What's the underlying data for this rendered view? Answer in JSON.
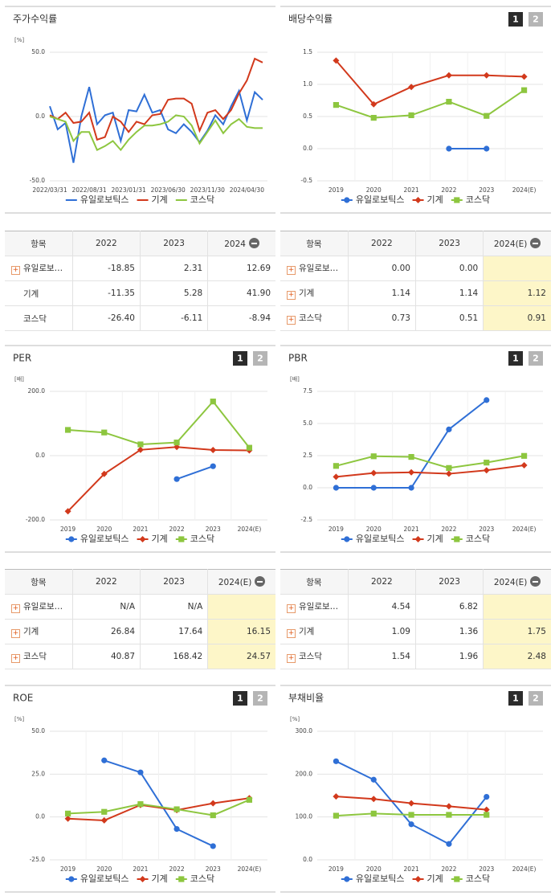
{
  "chart_data": [
    {
      "type": "line",
      "title": "주가수익률",
      "unit": "[%]",
      "categories": [
        "2022/03/31",
        null,
        null,
        null,
        null,
        "2022/08/31",
        null,
        null,
        null,
        null,
        "2023/01/31",
        null,
        null,
        null,
        null,
        "2023/06/30",
        null,
        null,
        null,
        null,
        "2023/11/30",
        null,
        null,
        null,
        null,
        "2024/04/30",
        null,
        null
      ],
      "series": [
        {
          "name": "유일로보틱스",
          "color": "#2f6fd6",
          "values": [
            8,
            -10,
            -5,
            -36,
            0,
            23,
            -6,
            1,
            3,
            -19,
            5,
            4,
            17,
            3,
            5,
            -10,
            -13,
            -6,
            -12,
            -20,
            -11,
            1,
            -6,
            8,
            20,
            -3,
            19,
            13
          ]
        },
        {
          "name": "기계",
          "color": "#d2391c",
          "values": [
            1,
            -2,
            3,
            -5,
            -4,
            3,
            -18,
            -16,
            0,
            -4,
            -12,
            -4,
            -6,
            1,
            2,
            13,
            14,
            14,
            10,
            -11,
            3,
            5,
            -2,
            5,
            18,
            28,
            45,
            42
          ]
        },
        {
          "name": "코스닥",
          "color": "#8dc63f",
          "values": [
            0,
            -2,
            -4,
            -19,
            -12,
            -12,
            -26,
            -23,
            -19,
            -26,
            -18,
            -12,
            -7,
            -7,
            -6,
            -4,
            1,
            0,
            -7,
            -21,
            -12,
            -3,
            -13,
            -6,
            -2,
            -8,
            -9,
            -9
          ]
        }
      ],
      "ylim": [
        -50,
        50
      ],
      "yticks": [
        {
          "value": -50,
          "label": "-50.0"
        },
        {
          "value": 0,
          "label": "0.0"
        },
        {
          "value": 50,
          "label": "50.0"
        }
      ],
      "grid": true
    },
    {
      "type": "line",
      "title": "배당수익률",
      "page_buttons": [
        "1",
        "2"
      ],
      "categories": [
        "2019",
        "2020",
        "2021",
        "2022",
        "2023",
        "2024(E)"
      ],
      "series": [
        {
          "name": "유일로보틱스",
          "color": "#2f6fd6",
          "marker": "circle",
          "values": [
            null,
            null,
            null,
            0,
            0,
            null
          ]
        },
        {
          "name": "기계",
          "color": "#d2391c",
          "marker": "diamond",
          "values": [
            1.37,
            0.69,
            0.96,
            1.14,
            1.14,
            1.12
          ]
        },
        {
          "name": "코스닥",
          "color": "#8dc63f",
          "marker": "square",
          "values": [
            0.68,
            0.48,
            0.52,
            0.73,
            0.51,
            0.91
          ]
        }
      ],
      "ylim": [
        -0.5,
        1.5
      ],
      "yticks": [
        -0.5,
        {
          "value": 0,
          "label": "0.0"
        },
        0.5,
        {
          "value": 1,
          "label": "1.0"
        },
        1.5
      ],
      "grid": true
    },
    {
      "type": "line",
      "title": "PER",
      "page_buttons": [
        "1",
        "2"
      ],
      "unit": "[배]",
      "categories": [
        "2019",
        "2020",
        "2021",
        "2022",
        "2023",
        "2024(E)"
      ],
      "series": [
        {
          "name": "유일로보틱스",
          "color": "#2f6fd6",
          "marker": "circle",
          "values": [
            null,
            null,
            null,
            -73,
            -33,
            null
          ]
        },
        {
          "name": "기계",
          "color": "#d2391c",
          "marker": "diamond",
          "values": [
            -173,
            -57,
            18,
            26.84,
            17.64,
            16.15
          ]
        },
        {
          "name": "코스닥",
          "color": "#8dc63f",
          "marker": "square",
          "values": [
            80,
            72,
            35,
            40.87,
            168.42,
            24.57
          ]
        }
      ],
      "ylim": [
        -200,
        200
      ],
      "yticks": [
        {
          "value": -200,
          "label": "-200.0"
        },
        {
          "value": 0,
          "label": "0.0"
        },
        {
          "value": 200,
          "label": "200.0"
        }
      ],
      "grid": true
    },
    {
      "type": "line",
      "title": "PBR",
      "page_buttons": [
        "1",
        "2"
      ],
      "unit": "[배]",
      "categories": [
        "2019",
        "2020",
        "2021",
        "2022",
        "2023",
        "2024(E)"
      ],
      "series": [
        {
          "name": "유일로보틱스",
          "color": "#2f6fd6",
          "marker": "circle",
          "values": [
            0,
            0,
            0,
            4.54,
            6.82,
            null
          ]
        },
        {
          "name": "기계",
          "color": "#d2391c",
          "marker": "diamond",
          "values": [
            0.85,
            1.15,
            1.2,
            1.09,
            1.36,
            1.75
          ]
        },
        {
          "name": "코스닥",
          "color": "#8dc63f",
          "marker": "square",
          "values": [
            1.7,
            2.45,
            2.4,
            1.54,
            1.96,
            2.48
          ]
        }
      ],
      "ylim": [
        -2.5,
        7.5
      ],
      "yticks": [
        -2.5,
        {
          "value": 0,
          "label": "0.0"
        },
        2.5,
        {
          "value": 5,
          "label": "5.0"
        },
        7.5
      ],
      "grid": true
    },
    {
      "type": "line",
      "title": "ROE",
      "page_buttons": [
        "1",
        "2"
      ],
      "unit": "[%]",
      "categories": [
        "2019",
        "2020",
        "2021",
        "2022",
        "2023",
        "2024(E)"
      ],
      "series": [
        {
          "name": "유일로보틱스",
          "color": "#2f6fd6",
          "marker": "circle",
          "values": [
            null,
            33,
            26,
            -7,
            -17,
            null
          ]
        },
        {
          "name": "기계",
          "color": "#d2391c",
          "marker": "diamond",
          "values": [
            -1,
            -2,
            7,
            4,
            8,
            11
          ]
        },
        {
          "name": "코스닥",
          "color": "#8dc63f",
          "marker": "square",
          "values": [
            2,
            3,
            7.5,
            4.5,
            1,
            10
          ]
        }
      ],
      "ylim": [
        -25,
        50
      ],
      "yticks": [
        {
          "value": -25,
          "label": "-25.0"
        },
        {
          "value": 0,
          "label": "0.0"
        },
        {
          "value": 25,
          "label": "25.0"
        },
        {
          "value": 50,
          "label": "50.0"
        }
      ],
      "grid": true
    },
    {
      "type": "line",
      "title": "부채비율",
      "page_buttons": [
        "1",
        "2"
      ],
      "unit": "[%]",
      "categories": [
        "2019",
        "2020",
        "2021",
        "2022",
        "2023",
        "2024(E)"
      ],
      "series": [
        {
          "name": "유일로보틱스",
          "color": "#2f6fd6",
          "marker": "circle",
          "values": [
            230,
            187,
            83,
            37,
            147,
            null
          ]
        },
        {
          "name": "기계",
          "color": "#d2391c",
          "marker": "diamond",
          "values": [
            148,
            142,
            132,
            125,
            117,
            null
          ]
        },
        {
          "name": "코스닥",
          "color": "#8dc63f",
          "marker": "square",
          "values": [
            103,
            108,
            105,
            105,
            105,
            null
          ]
        }
      ],
      "ylim": [
        0,
        300
      ],
      "yticks": [
        {
          "value": 0,
          "label": "0.0"
        },
        {
          "value": 100,
          "label": "100.0"
        },
        {
          "value": 200,
          "label": "200.0"
        },
        {
          "value": 300,
          "label": "300.0"
        }
      ],
      "grid": true
    }
  ],
  "tables": [
    {
      "header": [
        "항목",
        "2022",
        "2023",
        "2024"
      ],
      "rows": [
        [
          "유일로보…",
          "-18.85",
          "2.31",
          "12.69"
        ],
        [
          "기계",
          "-11.35",
          "5.28",
          "41.90"
        ],
        [
          "코스닥",
          "-26.40",
          "-6.11",
          "-8.94"
        ]
      ]
    },
    {
      "header": [
        "항목",
        "2022",
        "2023",
        "2024(E)"
      ],
      "rows": [
        [
          "유일로보…",
          "0.00",
          "0.00",
          null
        ],
        [
          "기계",
          "1.14",
          "1.14",
          "1.12"
        ],
        [
          "코스닥",
          "0.73",
          "0.51",
          "0.91"
        ]
      ]
    },
    {
      "header": [
        "항목",
        "2022",
        "2023",
        "2024(E)"
      ],
      "rows": [
        [
          "유일로보…",
          "N/A",
          "N/A",
          null
        ],
        [
          "기계",
          "26.84",
          "17.64",
          "16.15"
        ],
        [
          "코스닥",
          "40.87",
          "168.42",
          "24.57"
        ]
      ]
    },
    {
      "header": [
        "항목",
        "2022",
        "2023",
        "2024(E)"
      ],
      "rows": [
        [
          "유일로보…",
          "4.54",
          "6.82",
          null
        ],
        [
          "기계",
          "1.09",
          "1.36",
          "1.75"
        ],
        [
          "코스닥",
          "1.54",
          "1.96",
          "2.48"
        ]
      ]
    }
  ]
}
